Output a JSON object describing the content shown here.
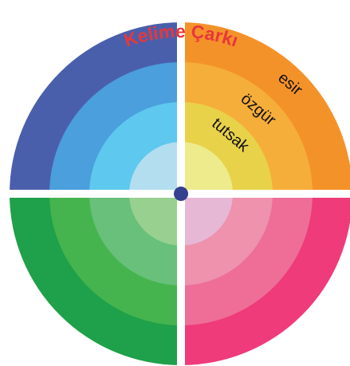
{
  "title": "Kelime Çarkı",
  "words": [
    "esir",
    "özgür",
    "tutsak"
  ]
}
